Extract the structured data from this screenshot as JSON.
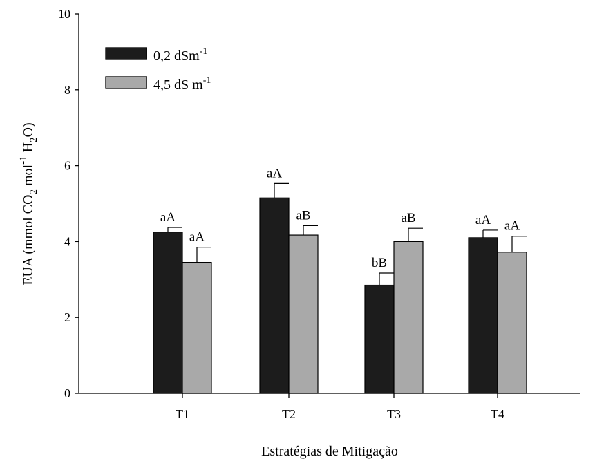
{
  "chart_data": {
    "type": "bar",
    "title": "",
    "xlabel": "Estratégias de Mitigação",
    "ylabel_parts": {
      "prefix": "EUA (mmol CO",
      "sub1": "2",
      "mid": " mol",
      "sup": "-1",
      "mid2": " H",
      "sub2": "2",
      "suffix": "O)"
    },
    "ylim": [
      0,
      10
    ],
    "yticks": [
      "0",
      "2",
      "4",
      "6",
      "8",
      "10"
    ],
    "categories": [
      "T1",
      "T2",
      "T3",
      "T4"
    ],
    "grid": false,
    "legend_position": "top-left",
    "series": [
      {
        "name_base": "0,2 dSm",
        "name_sup": "-1",
        "color": "#1c1c1c",
        "values": [
          4.25,
          5.15,
          2.85,
          4.1
        ],
        "errors": [
          0.12,
          0.38,
          0.32,
          0.2
        ],
        "labels": [
          "aA",
          "aA",
          "bB",
          "aA"
        ]
      },
      {
        "name_base": "4,5 dS m",
        "name_sup": "-1",
        "color": "#a9a9a9",
        "values": [
          3.45,
          4.17,
          4.0,
          3.72
        ],
        "errors": [
          0.4,
          0.25,
          0.35,
          0.42
        ],
        "labels": [
          "aA",
          "aB",
          "aB",
          "aA"
        ]
      }
    ]
  }
}
